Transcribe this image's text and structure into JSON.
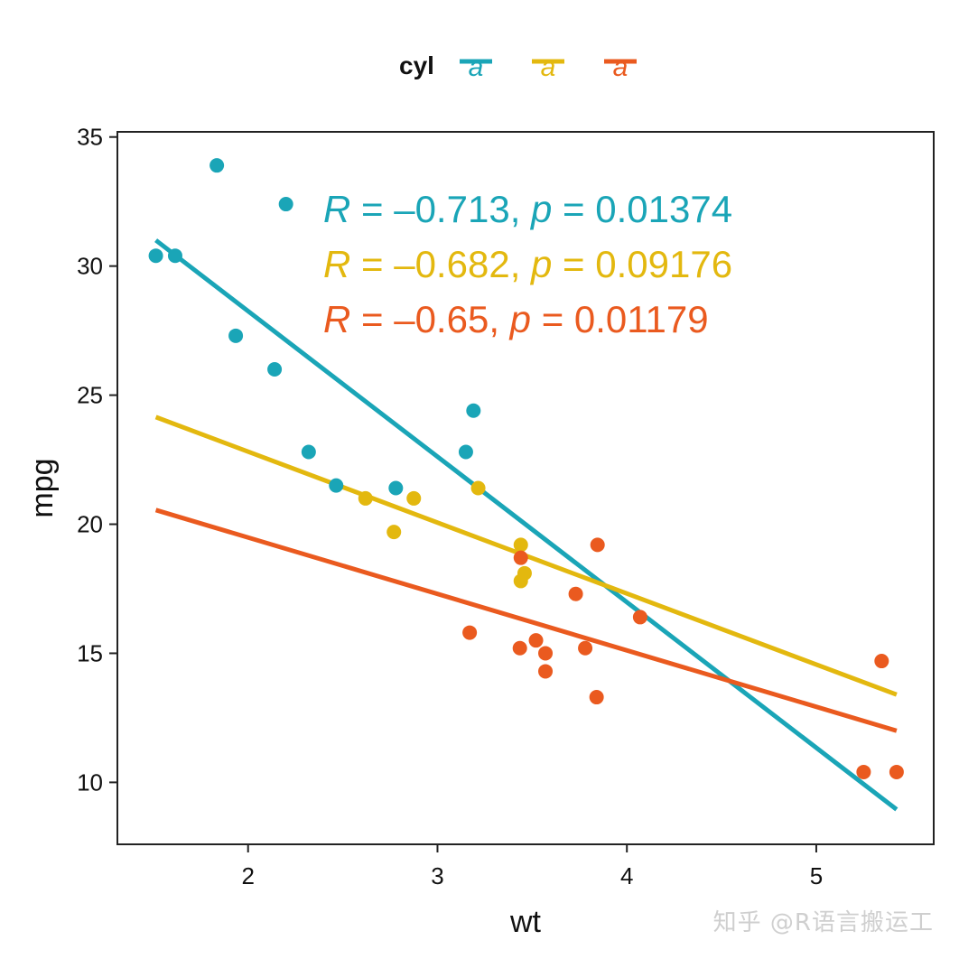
{
  "chart_data": {
    "type": "scatter",
    "title": "",
    "xlabel": "wt",
    "ylabel": "mpg",
    "xlim": [
      1.31,
      5.62
    ],
    "ylim": [
      7.6,
      35.2
    ],
    "x_ticks": [
      "2",
      "3",
      "4",
      "5"
    ],
    "y_ticks": [
      "10",
      "15",
      "20",
      "25",
      "30",
      "35"
    ],
    "grid": false,
    "legend": {
      "title": "cyl",
      "position": "top",
      "glyph": "a",
      "colors": [
        "#1aa5b7",
        "#e3b80f",
        "#ea5a1f"
      ]
    },
    "series": [
      {
        "color": "#1aa5b7",
        "points": [
          [
            1.513,
            30.4
          ],
          [
            1.615,
            30.4
          ],
          [
            1.835,
            33.9
          ],
          [
            1.935,
            27.3
          ],
          [
            2.14,
            26.0
          ],
          [
            2.2,
            32.4
          ],
          [
            2.32,
            22.8
          ],
          [
            2.465,
            21.5
          ],
          [
            2.78,
            21.4
          ],
          [
            3.15,
            22.8
          ],
          [
            3.19,
            24.4
          ]
        ],
        "fit": {
          "x": [
            1.513,
            5.424
          ],
          "y": [
            31.0,
            8.95
          ]
        },
        "annotation": {
          "r": "–0.713",
          "p": "0.01374"
        }
      },
      {
        "color": "#e3b80f",
        "points": [
          [
            2.62,
            21.0
          ],
          [
            2.77,
            19.7
          ],
          [
            2.875,
            21.0
          ],
          [
            3.215,
            21.4
          ],
          [
            3.44,
            17.8
          ],
          [
            3.44,
            19.2
          ],
          [
            3.46,
            18.1
          ]
        ],
        "fit": {
          "x": [
            1.513,
            5.424
          ],
          "y": [
            24.15,
            13.4
          ]
        },
        "annotation": {
          "r": "–0.682",
          "p": "0.09176"
        }
      },
      {
        "color": "#ea5a1f",
        "points": [
          [
            3.17,
            15.8
          ],
          [
            3.435,
            15.2
          ],
          [
            3.44,
            18.7
          ],
          [
            3.52,
            15.5
          ],
          [
            3.57,
            14.3
          ],
          [
            3.57,
            15.0
          ],
          [
            3.73,
            17.3
          ],
          [
            3.78,
            15.2
          ],
          [
            3.84,
            13.3
          ],
          [
            3.845,
            19.2
          ],
          [
            4.07,
            16.4
          ],
          [
            5.25,
            10.4
          ],
          [
            5.345,
            14.7
          ],
          [
            5.424,
            10.4
          ]
        ],
        "fit": {
          "x": [
            1.513,
            5.424
          ],
          "y": [
            20.55,
            12.0
          ]
        },
        "annotation": {
          "r": "–0.65",
          "p": "0.01179"
        }
      }
    ]
  },
  "watermark": "知乎 @R语言搬运工"
}
